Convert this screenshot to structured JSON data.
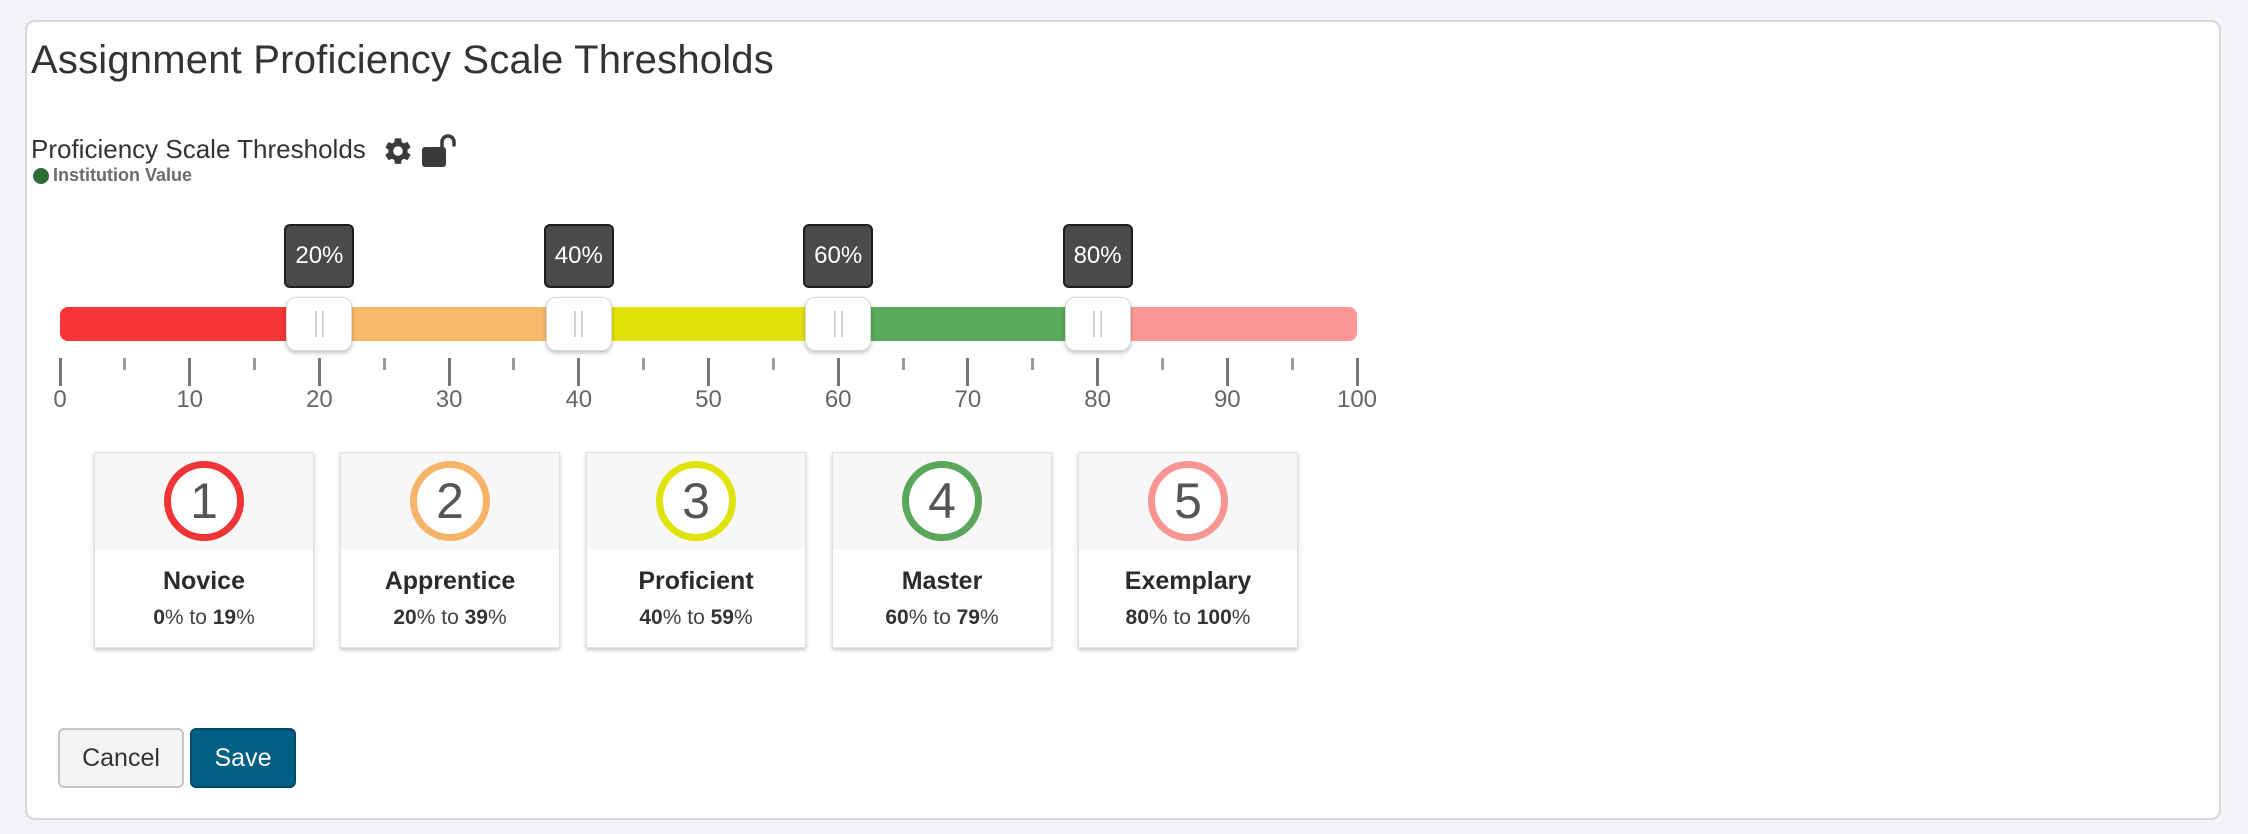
{
  "page": {
    "title": "Assignment Proficiency Scale Thresholds"
  },
  "field": {
    "label": "Proficiency Scale Thresholds",
    "source_label": "Institution Value",
    "icons": [
      "gear-icon",
      "unlocked-icon"
    ]
  },
  "slider": {
    "min": 0,
    "max": 100,
    "thresholds": [
      20,
      40,
      60,
      80
    ],
    "threshold_labels": [
      "20%",
      "40%",
      "60%",
      "80%"
    ],
    "tick_labels": [
      "0",
      "10",
      "20",
      "30",
      "40",
      "50",
      "60",
      "70",
      "80",
      "90",
      "100"
    ],
    "segment_colors": [
      "#f73537",
      "#f9b96a",
      "#e1e306",
      "#58ab59",
      "#fb9896"
    ]
  },
  "levels": [
    {
      "number": "1",
      "name": "Novice",
      "from": "0",
      "to": "19",
      "pct": "%",
      "sep": " to ",
      "color": "#ee3437"
    },
    {
      "number": "2",
      "name": "Apprentice",
      "from": "20",
      "to": "39",
      "pct": "%",
      "sep": " to ",
      "color": "#f6b468"
    },
    {
      "number": "3",
      "name": "Proficient",
      "from": "40",
      "to": "59",
      "pct": "%",
      "sep": " to ",
      "color": "#e0e20c"
    },
    {
      "number": "4",
      "name": "Master",
      "from": "60",
      "to": "79",
      "pct": "%",
      "sep": " to ",
      "color": "#5aa65a"
    },
    {
      "number": "5",
      "name": "Exemplary",
      "from": "80",
      "to": "100",
      "pct": "%",
      "sep": " to ",
      "color": "#f79593"
    }
  ],
  "actions": {
    "cancel_label": "Cancel",
    "save_label": "Save"
  }
}
